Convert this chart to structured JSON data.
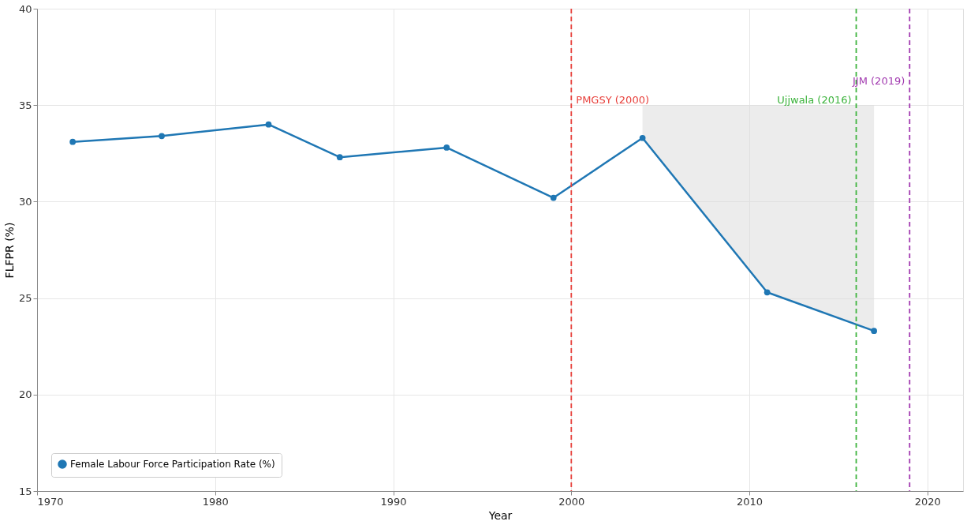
{
  "chart_data": {
    "type": "line",
    "xlabel": "Year",
    "ylabel": "FLFPR (%)",
    "x": [
      1972,
      1977,
      1983,
      1987,
      1993,
      1999,
      2004,
      2011,
      2017
    ],
    "series": [
      {
        "name": "Female Labour Force Participation Rate (%)",
        "color": "#1f77b4",
        "values": [
          33.1,
          33.4,
          34.0,
          32.3,
          32.8,
          30.2,
          33.3,
          25.3,
          23.3
        ],
        "lower": [
          null,
          null,
          null,
          null,
          null,
          null,
          33.3,
          25.3,
          23.3
        ],
        "upper": [
          null,
          null,
          null,
          null,
          null,
          null,
          35,
          35,
          35
        ]
      }
    ],
    "xlim": [
      1970,
      2022
    ],
    "xticks": [
      1970,
      1980,
      1990,
      2000,
      2010,
      2020
    ],
    "ylim": [
      15,
      40
    ],
    "yticks": [
      15,
      20,
      25,
      30,
      35,
      40
    ],
    "ref_lines": [
      {
        "axis": "x",
        "value": 2000,
        "label": "PMGSY (2000)",
        "color": "#e8413c",
        "line_style": "dashed"
      },
      {
        "axis": "x",
        "value": 2016,
        "label": "Ujjwala (2016)",
        "color": "#3cb33c",
        "line_style": "dashed"
      },
      {
        "axis": "x",
        "value": 2019,
        "label": "JJM (2019)",
        "color": "#a23bb0",
        "line_style": "dashed"
      }
    ],
    "grid": true,
    "legend": "bottom left",
    "marker": "circle",
    "line_style": "solid"
  }
}
